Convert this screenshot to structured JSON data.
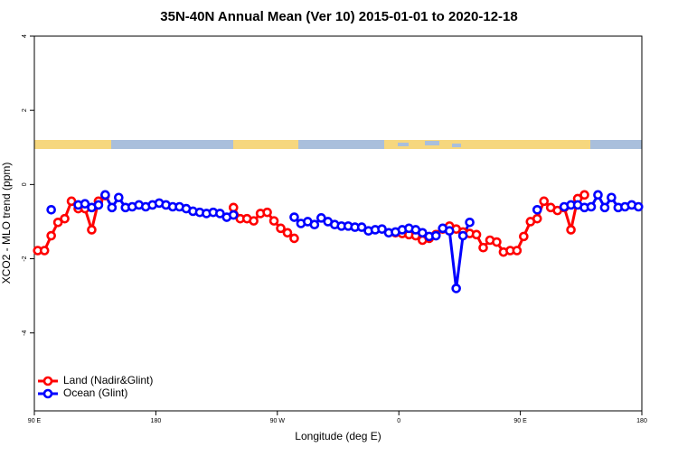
{
  "chart_data": {
    "type": "line",
    "title": "35N-40N Annual Mean (Ver 10)   2015-01-01 to 2020-12-18",
    "x_label": "Longitude (deg E)",
    "y_label": "XCO2 - MLO trend (ppm)",
    "xlim": [
      90,
      540
    ],
    "ylim": [
      -6.1,
      4
    ],
    "xticks": [
      {
        "value": 90,
        "label": "90 E"
      },
      180,
      {
        "value": 270,
        "label": "90 W"
      },
      {
        "value": 360,
        "label": "0"
      },
      {
        "value": 450,
        "label": "90 E"
      },
      {
        "value": 540,
        "label": "180"
      }
    ],
    "yticks": [
      -4,
      -2,
      0,
      2,
      4
    ],
    "legend": "bottom-left",
    "x": [
      92.5,
      97.5,
      102.5,
      107.5,
      112.5,
      117.5,
      122.5,
      127.5,
      132.5,
      137.5,
      142.5,
      147.5,
      152.5,
      157.5,
      162.5,
      167.5,
      172.5,
      177.5,
      182.5,
      187.5,
      192.5,
      197.5,
      202.5,
      207.5,
      212.5,
      217.5,
      222.5,
      227.5,
      232.5,
      237.5,
      242.5,
      247.5,
      252.5,
      257.5,
      262.5,
      267.5,
      272.5,
      277.5,
      282.5,
      287.5,
      292.5,
      297.5,
      302.5,
      307.5,
      312.5,
      317.5,
      322.5,
      327.5,
      332.5,
      337.5,
      342.5,
      347.5,
      352.5,
      357.5,
      362.5,
      367.5,
      372.5,
      377.5,
      382.5,
      387.5,
      392.5,
      397.5,
      402.5,
      407.5,
      412.5,
      417.5,
      422.5,
      427.5,
      432.5,
      437.5,
      442.5,
      447.5,
      452.5,
      457.5,
      462.5,
      467.5,
      472.5,
      477.5,
      482.5,
      487.5,
      492.5,
      497.5,
      502.5,
      507.5,
      512.5,
      517.5,
      522.5,
      527.5,
      532.5,
      537.5
    ],
    "series": [
      {
        "name": "Land (Nadir&Glint)",
        "color": "#ff0000",
        "values": [
          -1.78,
          -1.78,
          -1.38,
          -1.02,
          -0.92,
          -0.45,
          -0.65,
          -0.65,
          -1.22,
          -0.45,
          -0.3,
          null,
          null,
          null,
          null,
          null,
          null,
          null,
          null,
          null,
          null,
          null,
          null,
          null,
          null,
          null,
          null,
          null,
          null,
          -0.62,
          -0.92,
          -0.92,
          -0.98,
          -0.78,
          -0.75,
          -0.98,
          -1.18,
          -1.3,
          -1.45,
          null,
          null,
          null,
          null,
          null,
          null,
          null,
          null,
          null,
          null,
          null,
          null,
          null,
          null,
          -1.3,
          -1.32,
          -1.35,
          -1.38,
          -1.5,
          -1.45,
          -1.35,
          -1.2,
          -1.12,
          -1.2,
          -1.28,
          -1.32,
          -1.35,
          -1.7,
          -1.5,
          -1.55,
          -1.82,
          -1.78,
          -1.78,
          -1.4,
          -1.0,
          -0.92,
          -0.45,
          -0.62,
          -0.7,
          -0.62,
          -1.22,
          -0.38,
          -0.28,
          null,
          null,
          null,
          null,
          null,
          null,
          null,
          null
        ]
      },
      {
        "name": "Ocean (Glint)",
        "color": "#0000ff",
        "values": [
          null,
          null,
          -0.68,
          null,
          null,
          null,
          -0.55,
          -0.52,
          -0.62,
          -0.55,
          -0.28,
          -0.62,
          -0.35,
          -0.62,
          -0.6,
          -0.55,
          -0.6,
          -0.55,
          -0.5,
          -0.55,
          -0.6,
          -0.6,
          -0.65,
          -0.72,
          -0.75,
          -0.78,
          -0.75,
          -0.78,
          -0.88,
          -0.82,
          null,
          null,
          null,
          null,
          null,
          null,
          null,
          null,
          -0.88,
          -1.05,
          -1.0,
          -1.08,
          -0.9,
          -1.0,
          -1.08,
          -1.12,
          -1.12,
          -1.15,
          -1.15,
          -1.25,
          -1.22,
          -1.2,
          -1.3,
          -1.28,
          -1.22,
          -1.18,
          -1.22,
          -1.3,
          -1.4,
          -1.38,
          -1.18,
          -1.25,
          -2.8,
          -1.38,
          -1.02,
          null,
          null,
          null,
          null,
          null,
          null,
          null,
          null,
          null,
          -0.68,
          null,
          null,
          null,
          -0.6,
          -0.55,
          -0.55,
          -0.62,
          -0.6,
          -0.28,
          -0.62,
          -0.35,
          -0.62,
          -0.6,
          -0.55,
          -0.6
        ]
      }
    ]
  }
}
